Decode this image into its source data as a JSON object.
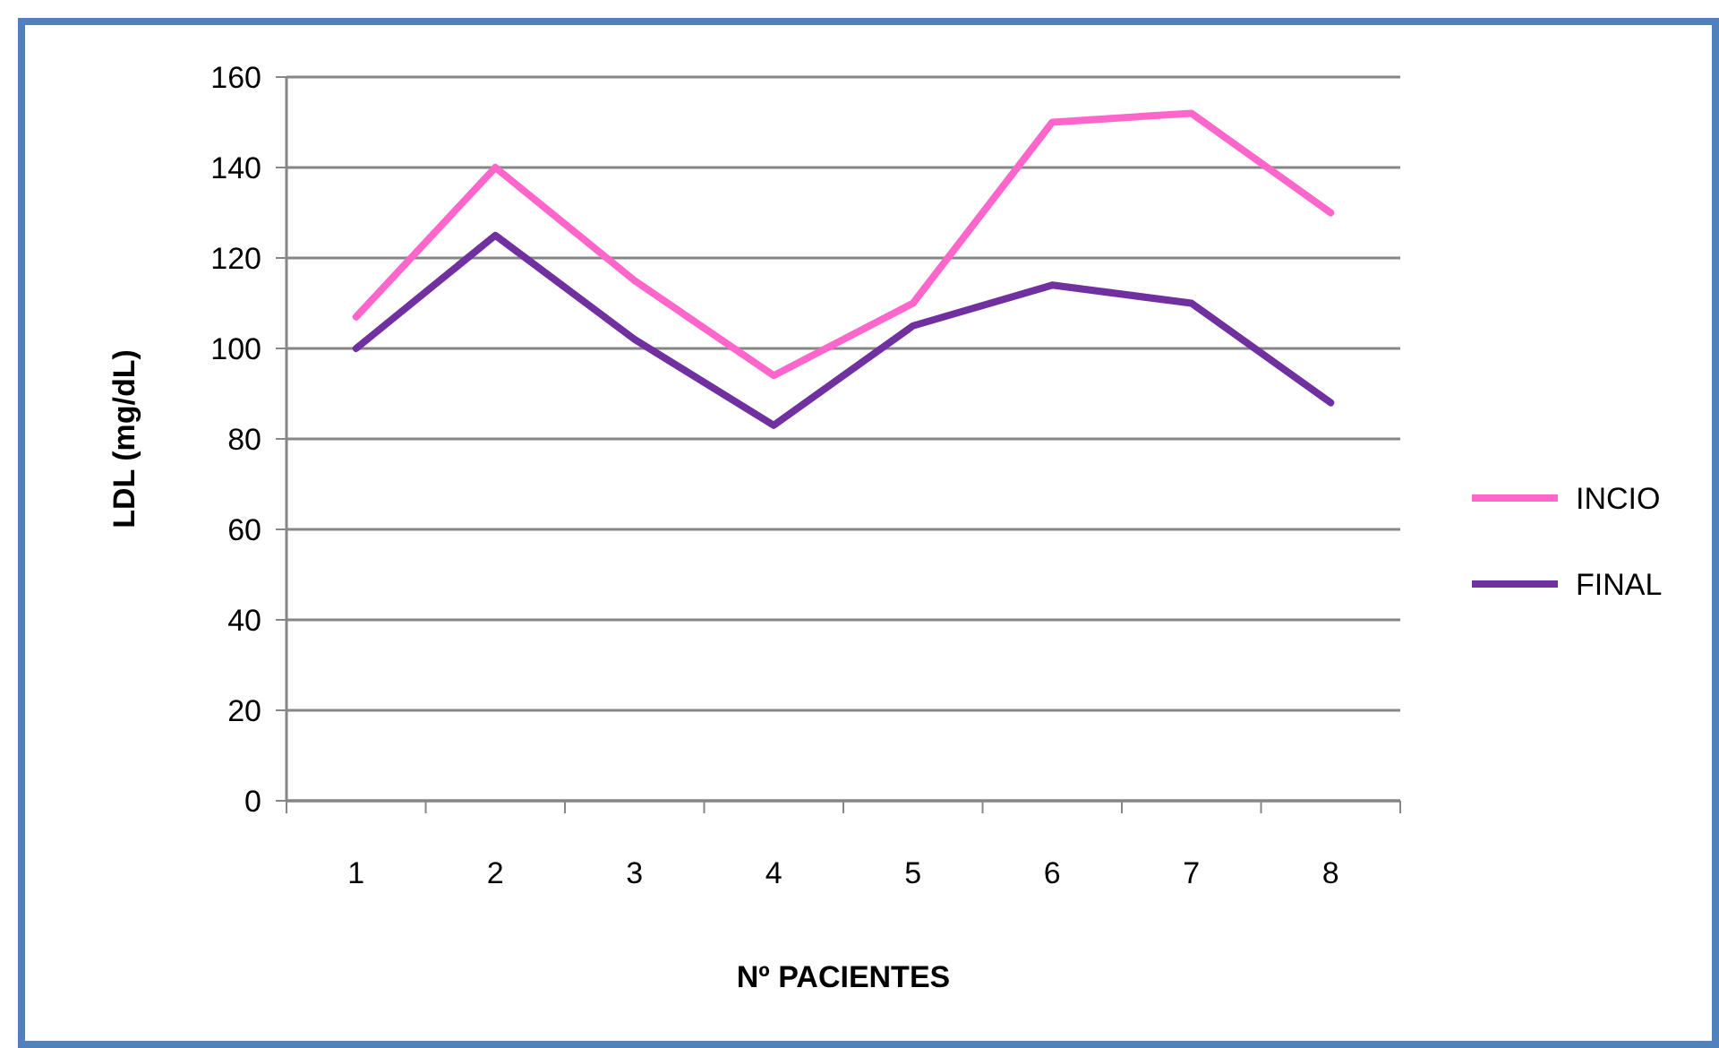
{
  "chart_data": {
    "type": "line",
    "xlabel": "Nº PACIENTES",
    "ylabel": "LDL (mg/dL)",
    "categories": [
      "1",
      "2",
      "3",
      "4",
      "5",
      "6",
      "7",
      "8"
    ],
    "series": [
      {
        "name": "INCIO",
        "color": "#ff66cc",
        "values": [
          107,
          140,
          115,
          94,
          110,
          150,
          152,
          130
        ]
      },
      {
        "name": "FINAL",
        "color": "#7030a0",
        "values": [
          100,
          125,
          102,
          83,
          105,
          114,
          110,
          88
        ]
      }
    ],
    "ylim": [
      0,
      160
    ],
    "yticks": [
      0,
      20,
      40,
      60,
      80,
      100,
      120,
      140,
      160
    ],
    "grid": "y",
    "legend": "right",
    "marker": "none",
    "line_style": "solid"
  }
}
